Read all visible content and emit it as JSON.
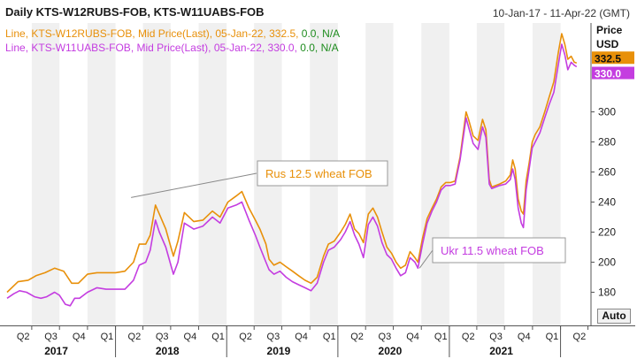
{
  "header": {
    "title": "Daily KTS-W12RUBS-FOB, KTS-W11UABS-FOB",
    "date_range": "10-Jan-17 - 11-Apr-22 (GMT)"
  },
  "axis": {
    "price_label_line1": "Price",
    "price_label_line2": "USD",
    "auto_button": "Auto"
  },
  "legend": [
    {
      "text": "Line, KTS-W12RUBS-FOB, Mid Price(Last), 05-Jan-22, 332.5,",
      "extra": "0.0, N/A",
      "color": "#e8900a"
    },
    {
      "text": "Line, KTS-W11UABS-FOB, Mid Price(Last), 05-Jan-22, 330.0,",
      "extra": "0.0, N/A",
      "color": "#c43de0"
    }
  ],
  "chart_data": {
    "type": "line",
    "title": "Daily KTS-W12RUBS-FOB, KTS-W11UABS-FOB",
    "ylabel": "Price USD",
    "ylim": [
      170,
      360
    ],
    "yticks": [
      180,
      200,
      220,
      240,
      260,
      280,
      300
    ],
    "x_range": [
      "2017-01-10",
      "2022-04-11"
    ],
    "grid": "none",
    "quarter_ticks": [
      {
        "label": "Q2",
        "date": "2017-04-01"
      },
      {
        "label": "Q3",
        "date": "2017-07-01"
      },
      {
        "label": "Q4",
        "date": "2017-10-01"
      },
      {
        "label": "Q1",
        "date": "2018-01-01"
      },
      {
        "label": "Q2",
        "date": "2018-04-01"
      },
      {
        "label": "Q3",
        "date": "2018-07-01"
      },
      {
        "label": "Q4",
        "date": "2018-10-01"
      },
      {
        "label": "Q1",
        "date": "2019-01-01"
      },
      {
        "label": "Q2",
        "date": "2019-04-01"
      },
      {
        "label": "Q3",
        "date": "2019-07-01"
      },
      {
        "label": "Q4",
        "date": "2019-10-01"
      },
      {
        "label": "Q1",
        "date": "2020-01-01"
      },
      {
        "label": "Q2",
        "date": "2020-04-01"
      },
      {
        "label": "Q3",
        "date": "2020-07-01"
      },
      {
        "label": "Q4",
        "date": "2020-10-01"
      },
      {
        "label": "Q1",
        "date": "2021-01-01"
      },
      {
        "label": "Q2",
        "date": "2021-04-01"
      },
      {
        "label": "Q3",
        "date": "2021-07-01"
      },
      {
        "label": "Q4",
        "date": "2021-10-01"
      },
      {
        "label": "Q1",
        "date": "2022-01-01"
      },
      {
        "label": "Q2",
        "date": "2022-04-01"
      }
    ],
    "year_labels": [
      {
        "label": "2017",
        "date": "2017-07-01"
      },
      {
        "label": "2018",
        "date": "2018-07-01"
      },
      {
        "label": "2019",
        "date": "2019-07-01"
      },
      {
        "label": "2020",
        "date": "2020-07-01"
      },
      {
        "label": "2021",
        "date": "2021-07-01"
      }
    ],
    "shaded_quarters": [
      "2017-04-01",
      "2017-10-01",
      "2018-04-01",
      "2018-10-01",
      "2019-04-01",
      "2019-10-01",
      "2020-04-01",
      "2020-10-01",
      "2021-04-01",
      "2021-10-01"
    ],
    "last_values": [
      {
        "label": "332.5",
        "value": 332.5,
        "color": "#e8900a"
      },
      {
        "label": "330.0",
        "value": 330.0,
        "color": "#c43de0"
      }
    ],
    "annotations": [
      {
        "text": "Rus 12.5 wheat FOB",
        "color": "#e8900a",
        "date": "2018-02-21",
        "value": 243
      },
      {
        "text": "Ukr 11.5 wheat FOB",
        "color": "#c43de0",
        "date": "2020-09-25",
        "value": 196
      }
    ],
    "series": [
      {
        "name": "KTS-W12RUBS-FOB",
        "color": "#e8900a",
        "points": [
          [
            "2017-01-10",
            180
          ],
          [
            "2017-02-15",
            187
          ],
          [
            "2017-03-20",
            188
          ],
          [
            "2017-04-15",
            191
          ],
          [
            "2017-05-15",
            193
          ],
          [
            "2017-06-15",
            196
          ],
          [
            "2017-07-15",
            194
          ],
          [
            "2017-08-10",
            186
          ],
          [
            "2017-09-01",
            186
          ],
          [
            "2017-10-01",
            192
          ],
          [
            "2017-11-01",
            193
          ],
          [
            "2017-12-01",
            193
          ],
          [
            "2018-01-01",
            193
          ],
          [
            "2018-02-01",
            194
          ],
          [
            "2018-03-01",
            200
          ],
          [
            "2018-03-20",
            212
          ],
          [
            "2018-04-10",
            212
          ],
          [
            "2018-04-25",
            218
          ],
          [
            "2018-05-12",
            238
          ],
          [
            "2018-05-25",
            232
          ],
          [
            "2018-06-15",
            222
          ],
          [
            "2018-07-10",
            204
          ],
          [
            "2018-07-25",
            214
          ],
          [
            "2018-08-15",
            233
          ],
          [
            "2018-09-15",
            227
          ],
          [
            "2018-10-15",
            228
          ],
          [
            "2018-11-15",
            234
          ],
          [
            "2018-12-10",
            230
          ],
          [
            "2019-01-05",
            240
          ],
          [
            "2019-02-01",
            244
          ],
          [
            "2019-02-20",
            247
          ],
          [
            "2019-03-15",
            236
          ],
          [
            "2019-04-05",
            228
          ],
          [
            "2019-04-20",
            222
          ],
          [
            "2019-05-10",
            212
          ],
          [
            "2019-05-20",
            202
          ],
          [
            "2019-06-05",
            198
          ],
          [
            "2019-06-25",
            200
          ],
          [
            "2019-07-15",
            197
          ],
          [
            "2019-08-05",
            194
          ],
          [
            "2019-08-25",
            191
          ],
          [
            "2019-09-15",
            188
          ],
          [
            "2019-10-05",
            186
          ],
          [
            "2019-10-25",
            190
          ],
          [
            "2019-11-15",
            204
          ],
          [
            "2019-12-01",
            212
          ],
          [
            "2019-12-20",
            214
          ],
          [
            "2020-01-10",
            220
          ],
          [
            "2020-01-25",
            225
          ],
          [
            "2020-02-10",
            232
          ],
          [
            "2020-02-25",
            222
          ],
          [
            "2020-03-10",
            219
          ],
          [
            "2020-03-25",
            213
          ],
          [
            "2020-04-10",
            232
          ],
          [
            "2020-04-25",
            236
          ],
          [
            "2020-05-10",
            230
          ],
          [
            "2020-05-25",
            220
          ],
          [
            "2020-06-10",
            210
          ],
          [
            "2020-06-25",
            206
          ],
          [
            "2020-07-10",
            200
          ],
          [
            "2020-07-25",
            196
          ],
          [
            "2020-08-10",
            198
          ],
          [
            "2020-08-25",
            207
          ],
          [
            "2020-09-10",
            203
          ],
          [
            "2020-09-20",
            200
          ],
          [
            "2020-10-05",
            216
          ],
          [
            "2020-10-20",
            229
          ],
          [
            "2020-11-05",
            236
          ],
          [
            "2020-11-20",
            242
          ],
          [
            "2020-12-05",
            250
          ],
          [
            "2020-12-20",
            253
          ],
          [
            "2021-01-05",
            253
          ],
          [
            "2021-01-20",
            254
          ],
          [
            "2021-02-05",
            270
          ],
          [
            "2021-02-15",
            285
          ],
          [
            "2021-02-25",
            300
          ],
          [
            "2021-03-05",
            295
          ],
          [
            "2021-03-20",
            284
          ],
          [
            "2021-04-05",
            281
          ],
          [
            "2021-04-20",
            295
          ],
          [
            "2021-05-01",
            288
          ],
          [
            "2021-05-12",
            255
          ],
          [
            "2021-05-20",
            250
          ],
          [
            "2021-06-15",
            252
          ],
          [
            "2021-07-05",
            254
          ],
          [
            "2021-07-20",
            258
          ],
          [
            "2021-07-28",
            268
          ],
          [
            "2021-08-05",
            262
          ],
          [
            "2021-08-15",
            242
          ],
          [
            "2021-08-25",
            234
          ],
          [
            "2021-09-01",
            232
          ],
          [
            "2021-09-10",
            254
          ],
          [
            "2021-09-20",
            266
          ],
          [
            "2021-09-30",
            280
          ],
          [
            "2021-10-10",
            285
          ],
          [
            "2021-10-25",
            290
          ],
          [
            "2021-11-10",
            300
          ],
          [
            "2021-11-25",
            310
          ],
          [
            "2021-12-10",
            320
          ],
          [
            "2021-12-25",
            340
          ],
          [
            "2022-01-05",
            352
          ],
          [
            "2022-01-15",
            345
          ],
          [
            "2022-01-25",
            335
          ],
          [
            "2022-02-05",
            337
          ],
          [
            "2022-02-15",
            333
          ],
          [
            "2022-02-23",
            332.5
          ]
        ]
      },
      {
        "name": "KTS-W11UABS-FOB",
        "color": "#c43de0",
        "points": [
          [
            "2017-01-10",
            176
          ],
          [
            "2017-02-01",
            179
          ],
          [
            "2017-02-20",
            181
          ],
          [
            "2017-03-15",
            180
          ],
          [
            "2017-04-10",
            177
          ],
          [
            "2017-05-01",
            176
          ],
          [
            "2017-05-20",
            177
          ],
          [
            "2017-06-15",
            180
          ],
          [
            "2017-07-01",
            178
          ],
          [
            "2017-07-20",
            172
          ],
          [
            "2017-08-05",
            171
          ],
          [
            "2017-08-20",
            176
          ],
          [
            "2017-09-05",
            176
          ],
          [
            "2017-10-01",
            180
          ],
          [
            "2017-11-01",
            183
          ],
          [
            "2017-12-01",
            182
          ],
          [
            "2018-01-01",
            182
          ],
          [
            "2018-02-01",
            182
          ],
          [
            "2018-03-01",
            188
          ],
          [
            "2018-03-20",
            198
          ],
          [
            "2018-04-10",
            200
          ],
          [
            "2018-04-25",
            208
          ],
          [
            "2018-05-12",
            228
          ],
          [
            "2018-05-25",
            220
          ],
          [
            "2018-06-15",
            210
          ],
          [
            "2018-07-10",
            192
          ],
          [
            "2018-07-25",
            200
          ],
          [
            "2018-08-15",
            226
          ],
          [
            "2018-09-15",
            222
          ],
          [
            "2018-10-15",
            224
          ],
          [
            "2018-11-15",
            230
          ],
          [
            "2018-12-10",
            226
          ],
          [
            "2019-01-05",
            236
          ],
          [
            "2019-02-01",
            238
          ],
          [
            "2019-02-20",
            240
          ],
          [
            "2019-03-15",
            228
          ],
          [
            "2019-04-05",
            218
          ],
          [
            "2019-04-20",
            210
          ],
          [
            "2019-05-10",
            200
          ],
          [
            "2019-05-20",
            195
          ],
          [
            "2019-06-05",
            192
          ],
          [
            "2019-06-25",
            194
          ],
          [
            "2019-07-15",
            190
          ],
          [
            "2019-08-05",
            187
          ],
          [
            "2019-08-25",
            185
          ],
          [
            "2019-09-15",
            183
          ],
          [
            "2019-10-05",
            181
          ],
          [
            "2019-10-25",
            186
          ],
          [
            "2019-11-15",
            200
          ],
          [
            "2019-12-01",
            208
          ],
          [
            "2019-12-20",
            210
          ],
          [
            "2020-01-10",
            215
          ],
          [
            "2020-01-25",
            220
          ],
          [
            "2020-02-10",
            227
          ],
          [
            "2020-02-25",
            218
          ],
          [
            "2020-03-10",
            212
          ],
          [
            "2020-03-25",
            203
          ],
          [
            "2020-04-10",
            225
          ],
          [
            "2020-04-25",
            230
          ],
          [
            "2020-05-10",
            224
          ],
          [
            "2020-05-25",
            213
          ],
          [
            "2020-06-10",
            205
          ],
          [
            "2020-06-25",
            202
          ],
          [
            "2020-07-10",
            196
          ],
          [
            "2020-07-25",
            191
          ],
          [
            "2020-08-10",
            193
          ],
          [
            "2020-08-25",
            203
          ],
          [
            "2020-09-10",
            200
          ],
          [
            "2020-09-20",
            196
          ],
          [
            "2020-10-05",
            212
          ],
          [
            "2020-10-20",
            226
          ],
          [
            "2020-11-05",
            234
          ],
          [
            "2020-11-20",
            240
          ],
          [
            "2020-12-05",
            248
          ],
          [
            "2020-12-20",
            251
          ],
          [
            "2021-01-05",
            251
          ],
          [
            "2021-01-20",
            252
          ],
          [
            "2021-02-05",
            268
          ],
          [
            "2021-02-15",
            282
          ],
          [
            "2021-02-25",
            296
          ],
          [
            "2021-03-05",
            290
          ],
          [
            "2021-03-20",
            279
          ],
          [
            "2021-04-05",
            275
          ],
          [
            "2021-04-20",
            290
          ],
          [
            "2021-05-01",
            283
          ],
          [
            "2021-05-12",
            252
          ],
          [
            "2021-05-20",
            249
          ],
          [
            "2021-06-15",
            251
          ],
          [
            "2021-07-05",
            252
          ],
          [
            "2021-07-20",
            255
          ],
          [
            "2021-07-28",
            262
          ],
          [
            "2021-08-05",
            255
          ],
          [
            "2021-08-15",
            236
          ],
          [
            "2021-08-25",
            226
          ],
          [
            "2021-09-01",
            223
          ],
          [
            "2021-09-10",
            248
          ],
          [
            "2021-09-20",
            262
          ],
          [
            "2021-09-30",
            276
          ],
          [
            "2021-10-10",
            280
          ],
          [
            "2021-10-25",
            286
          ],
          [
            "2021-11-10",
            296
          ],
          [
            "2021-11-25",
            305
          ],
          [
            "2021-12-10",
            313
          ],
          [
            "2021-12-25",
            332
          ],
          [
            "2022-01-05",
            345
          ],
          [
            "2022-01-15",
            338
          ],
          [
            "2022-01-25",
            328
          ],
          [
            "2022-02-05",
            333
          ],
          [
            "2022-02-15",
            331
          ],
          [
            "2022-02-23",
            330.0
          ]
        ]
      }
    ]
  }
}
